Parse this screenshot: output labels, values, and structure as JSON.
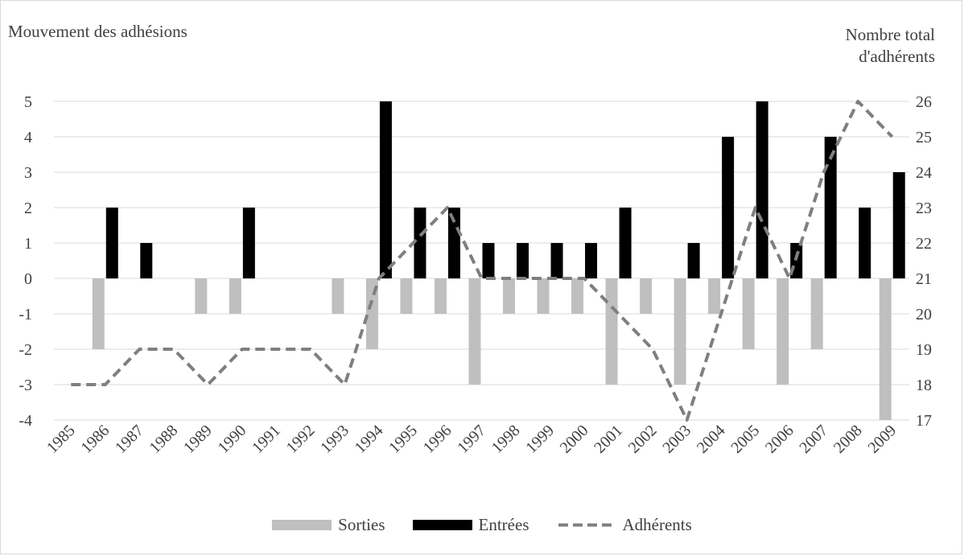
{
  "chart_data": {
    "type": "bar",
    "title": "",
    "ylabel_left": "Mouvement des adhésions",
    "ylabel_right": "Nombre total d'adhérents",
    "ylim_left": [
      -4,
      5
    ],
    "ylim_right": [
      17,
      26
    ],
    "categories": [
      "1985",
      "1986",
      "1987",
      "1988",
      "1989",
      "1990",
      "1991",
      "1992",
      "1993",
      "1994",
      "1995",
      "1996",
      "1997",
      "1998",
      "1999",
      "2000",
      "2001",
      "2002",
      "2003",
      "2004",
      "2005",
      "2006",
      "2007",
      "2008",
      "2009"
    ],
    "series": [
      {
        "name": "Sorties",
        "type": "bar",
        "axis": "left",
        "color": "#bfbfbf",
        "values": [
          0,
          -2,
          0,
          0,
          -1,
          -1,
          0,
          0,
          -1,
          -2,
          -1,
          -1,
          -3,
          -1,
          -1,
          -1,
          -3,
          -1,
          -3,
          -1,
          -2,
          -3,
          -2,
          0,
          -4
        ]
      },
      {
        "name": "Entrées",
        "type": "bar",
        "axis": "left",
        "color": "#000000",
        "values": [
          0,
          2,
          1,
          0,
          0,
          2,
          0,
          0,
          0,
          5,
          2,
          2,
          1,
          1,
          1,
          1,
          2,
          0,
          1,
          4,
          5,
          1,
          4,
          2,
          3
        ]
      },
      {
        "name": "Adhérents",
        "type": "line",
        "style": "dashed",
        "axis": "right",
        "color": "#7f7f7f",
        "values": [
          18,
          18,
          19,
          19,
          18,
          19,
          19,
          19,
          18,
          21,
          22,
          23,
          21,
          21,
          21,
          21,
          20,
          19,
          17,
          20,
          23,
          21,
          24,
          26,
          25
        ]
      }
    ],
    "left_ticks": [
      "5",
      "4",
      "3",
      "2",
      "1",
      "0",
      "-1",
      "-2",
      "-3",
      "-4"
    ],
    "right_ticks": [
      "26",
      "25",
      "24",
      "23",
      "22",
      "21",
      "20",
      "19",
      "18",
      "17"
    ],
    "grid": true,
    "legend_position": "bottom"
  }
}
